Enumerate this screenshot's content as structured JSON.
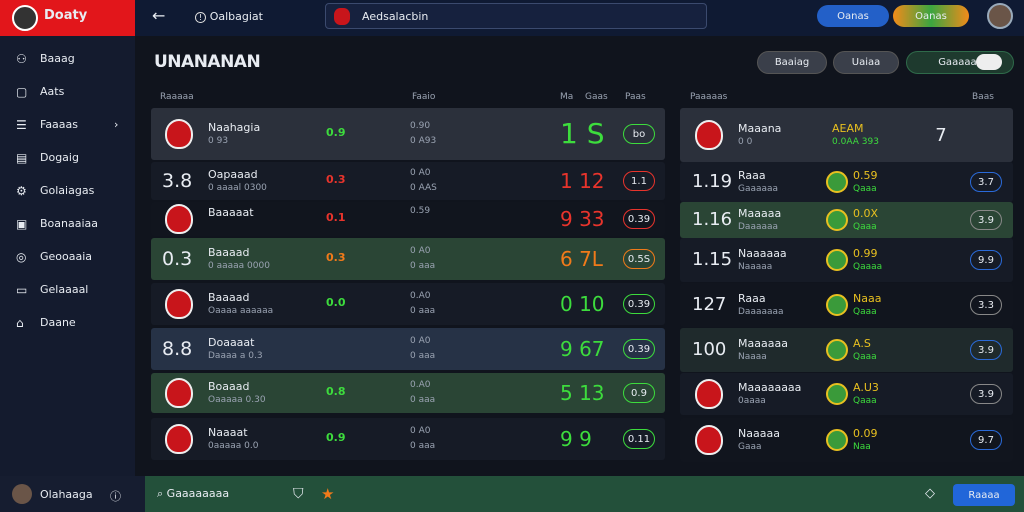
{
  "topbar": {
    "logo": "Doaty",
    "page": "Oalbagiat",
    "search": "Aedsalacbin",
    "pill_1": "Oanas",
    "pill_2": "Oanas"
  },
  "sidebar": {
    "items": [
      "Baaag",
      "Aats",
      "Faaaas",
      "Dogaig",
      "Golaiagas",
      "Boanaaiaa",
      "Geooaaia",
      "Gelaaaal",
      "Daane"
    ],
    "user": "Olahaaga"
  },
  "main": {
    "title": "UNANANAN",
    "buttons": [
      "Baaiag",
      "Uaiaa",
      "Gaaaaas"
    ]
  },
  "left_table": {
    "headers": [
      "Raaaaa",
      "Faaio",
      "Ma",
      "Gaas",
      "Paas"
    ],
    "rows": [
      {
        "rating": null,
        "name": "Naahagia",
        "sub": "0 93",
        "stat": "0.9",
        "info": "0.90",
        "info_sub": "0 A93",
        "score": "1 S",
        "badge": "bo",
        "bg": "#2b303b",
        "color": "#3ddc3d"
      },
      {
        "rating": "3.8",
        "name": "Oapaaad",
        "sub": "0 aaaal 0300",
        "stat": "0.3",
        "info": "0 A0",
        "info_sub": "0 AAS",
        "score": "1 12",
        "badge": "1.1",
        "bg": "#161b26",
        "color": "#e8342c"
      },
      {
        "rating": null,
        "name": "Baaaaat",
        "sub": null,
        "stat": "0.1",
        "info": "0.59",
        "info_sub": null,
        "score": "9 33",
        "badge": "0.39",
        "bg": "#11151e",
        "color": "#e8342c"
      },
      {
        "rating": "0.3",
        "name": "Baaaad",
        "sub": "0 aaaaa 0000",
        "stat": "0.3",
        "info": "0 A0",
        "info_sub": "0 aaa",
        "score": "6 7L",
        "badge": "0.5S",
        "bg": "#2a4535",
        "color": "#f07a1a"
      },
      {
        "rating": null,
        "name": "Baaaad",
        "sub": "Oaaaa aaaaaa",
        "stat": "0.0",
        "info": "0.A0",
        "info_sub": "0 aaa",
        "score": "0 10",
        "badge": "0.39",
        "bg": "#161b26",
        "color": "#3ddc3d"
      },
      {
        "rating": "8.8",
        "name": "Doaaaat",
        "sub": "Daaaa a 0.3",
        "stat": null,
        "info": "0 A0",
        "info_sub": "0 aaa",
        "score": "9 67",
        "badge": "0.39",
        "bg": "#263246",
        "color": "#3ddc3d"
      },
      {
        "rating": null,
        "name": "Boaaad",
        "sub": "Oaaaaa 0.30",
        "stat": "0.8",
        "info": "0.A0",
        "info_sub": "0 aaa",
        "score": "5 13",
        "badge": "0.9",
        "bg": "#2a4535",
        "color": "#3ddc3d"
      },
      {
        "rating": null,
        "name": "Naaaat",
        "sub": "0aaaaa 0.0",
        "stat": "0.9",
        "info": "0 A0",
        "info_sub": "0 aaa",
        "score": "9 9",
        "badge": "0.11",
        "bg": "#161b26",
        "color": "#3ddc3d"
      }
    ]
  },
  "right_table": {
    "headers": [
      "Paaaaas",
      "Baas"
    ],
    "rows": [
      {
        "rating": null,
        "name": "Maaana",
        "sub": "0 0",
        "stat": "AEAM",
        "stat_sub": "0.0AA 393",
        "badge": "7",
        "bg": "#2b303b"
      },
      {
        "rating": "1.19",
        "name": "Raaa",
        "sub": "Gaaaaaa",
        "stat": "0.59",
        "stat_sub": "Qaaa",
        "badge": "3.7",
        "bg": "#161b26"
      },
      {
        "rating": "1.16",
        "name": "Maaaaa",
        "sub": "Daaaaaa",
        "stat": "0.0X",
        "stat_sub": "Qaaa",
        "badge": "3.9",
        "bg": "#2a4535"
      },
      {
        "rating": "1.15",
        "name": "Naaaaaa",
        "sub": "Naaaaa",
        "stat": "0.99",
        "stat_sub": "Qaaaa",
        "badge": "9.9",
        "bg": "#161b26"
      },
      {
        "rating": "127",
        "name": "Raaa",
        "sub": "Daaaaaaa",
        "stat": "Naaa",
        "stat_sub": "Qaaa",
        "badge": "3.3",
        "bg": "#11151e"
      },
      {
        "rating": "100",
        "name": "Maaaaaa",
        "sub": "Naaaa",
        "stat": "A.S",
        "stat_sub": "Qaaa",
        "badge": "3.9",
        "bg": "#1f2a2c"
      },
      {
        "rating": null,
        "name": "Maaaaaaaa",
        "sub": "0aaaa",
        "stat": "A.U3",
        "stat_sub": "Qaaa",
        "badge": "3.9",
        "bg": "#161b26"
      },
      {
        "rating": null,
        "name": "Naaaaa",
        "sub": "Gaaa",
        "stat": "0.09",
        "stat_sub": "Naa",
        "badge": "9.7",
        "bg": "#11151e"
      }
    ]
  },
  "bottombar": {
    "search": "Gaaaaaaaa",
    "action": "Raaaa"
  }
}
